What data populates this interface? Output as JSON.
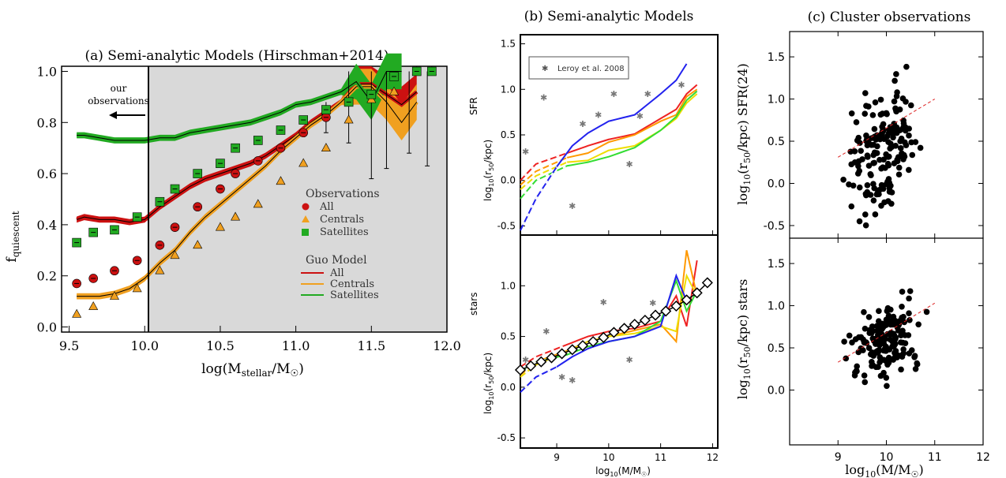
{
  "panel_a": {
    "title": "(a) Semi-analytic Models (Hirschman+2014)",
    "xlabel_main": "log(M",
    "xlabel_sub": "stellar",
    "xlabel_end": "/M",
    "ylabel_main": "f",
    "ylabel_sub": "quiescent",
    "annotation_line1": "our",
    "annotation_line2": "observations",
    "obs_legend_title": "Observations",
    "obs_all": "All",
    "obs_centrals": "Centrals",
    "obs_satellites": "Satellites",
    "model_legend_title": "Guo Model",
    "model_all": "All",
    "model_centrals": "Centrals",
    "model_satellites": "Satellites"
  },
  "panel_b": {
    "title": "(b) Semi-analytic Models",
    "legend_label": "Leroy et al. 2008",
    "top_ylabel_main": "log",
    "top_ylabel_sub": "10",
    "top_ylabel_rest": "(r",
    "top_ylabel_sub2": "50",
    "top_ylabel_end": "/kpc)",
    "top_tag": "SFR",
    "bottom_tag": "stars",
    "xlabel_main": "log",
    "xlabel_sub": "10",
    "xlabel_end": "(M/M"
  },
  "panel_c": {
    "title": "(c) Cluster observations",
    "top_ylabel": "log10(r50/kpc) SFR(24)",
    "bottom_ylabel": "log10(r50/kpc) stars",
    "xlabel_main": "log",
    "xlabel_sub": "10",
    "xlabel_end": "(M/M"
  },
  "colors": {
    "all": "#cc1111",
    "centrals": "#f0a020",
    "satellites": "#22aa22",
    "shade": "#d9d9d9",
    "blue": "#2222ee",
    "fit": "#dd2222"
  },
  "chart_data": [
    {
      "type": "line",
      "panel": "a",
      "title": "(a) Semi-analytic Models (Hirschman+2014)",
      "xlabel": "log(Mstellar/M☉)",
      "ylabel": "fquiescent",
      "xlim": [
        9.45,
        12.0
      ],
      "ylim": [
        -0.02,
        1.02
      ],
      "xticks": [
        "9.5",
        "10.0",
        "10.5",
        "11.0",
        "11.5",
        "12.0"
      ],
      "yticks": [
        "0.0",
        "0.2",
        "0.4",
        "0.6",
        "0.8",
        "1.0"
      ],
      "shaded_region_x": [
        10.0,
        12.0
      ],
      "vertical_line_x": 10.0,
      "model_series": [
        {
          "name": "All",
          "x": [
            9.55,
            9.6,
            9.7,
            9.8,
            9.9,
            10.0,
            10.1,
            10.2,
            10.3,
            10.4,
            10.5,
            10.6,
            10.7,
            10.8,
            10.9,
            11.0,
            11.1,
            11.2,
            11.3,
            11.4,
            11.5,
            11.6,
            11.7,
            11.8
          ],
          "y": [
            0.42,
            0.43,
            0.42,
            0.42,
            0.41,
            0.42,
            0.47,
            0.51,
            0.55,
            0.58,
            0.6,
            0.62,
            0.64,
            0.67,
            0.71,
            0.75,
            0.8,
            0.84,
            0.88,
            0.95,
            0.95,
            0.91,
            0.87,
            0.92
          ]
        },
        {
          "name": "Centrals",
          "x": [
            9.55,
            9.6,
            9.7,
            9.8,
            9.9,
            10.0,
            10.1,
            10.2,
            10.3,
            10.4,
            10.5,
            10.6,
            10.7,
            10.8,
            10.9,
            11.0,
            11.1,
            11.2,
            11.3,
            11.4,
            11.5,
            11.6,
            11.7,
            11.8
          ],
          "y": [
            0.12,
            0.12,
            0.12,
            0.13,
            0.15,
            0.19,
            0.25,
            0.3,
            0.37,
            0.43,
            0.48,
            0.53,
            0.58,
            0.63,
            0.69,
            0.74,
            0.79,
            0.83,
            0.88,
            0.94,
            0.94,
            0.88,
            0.8,
            0.88
          ]
        },
        {
          "name": "Satellites",
          "x": [
            9.55,
            9.6,
            9.7,
            9.8,
            9.9,
            10.0,
            10.1,
            10.2,
            10.3,
            10.4,
            10.5,
            10.6,
            10.7,
            10.8,
            10.9,
            11.0,
            11.1,
            11.2,
            11.3,
            11.4,
            11.5,
            11.6,
            11.7
          ],
          "y": [
            0.75,
            0.75,
            0.74,
            0.73,
            0.73,
            0.73,
            0.74,
            0.74,
            0.76,
            0.77,
            0.78,
            0.79,
            0.8,
            0.82,
            0.84,
            0.87,
            0.88,
            0.9,
            0.92,
            0.96,
            0.88,
            1.0,
            1.0
          ]
        }
      ],
      "observations": [
        {
          "name": "All",
          "x": [
            9.55,
            9.66,
            9.8,
            9.95,
            10.1,
            10.2,
            10.35,
            10.5,
            10.6,
            10.75,
            10.9,
            11.05,
            11.2
          ],
          "y": [
            0.17,
            0.19,
            0.22,
            0.26,
            0.32,
            0.39,
            0.47,
            0.54,
            0.6,
            0.65,
            0.7,
            0.76,
            0.82
          ]
        },
        {
          "name": "Centrals",
          "x": [
            9.55,
            9.66,
            9.8,
            9.95,
            10.1,
            10.2,
            10.35,
            10.5,
            10.6,
            10.75,
            10.9,
            11.05,
            11.2,
            11.35,
            11.5,
            11.65,
            11.8,
            11.9
          ],
          "y": [
            0.05,
            0.08,
            0.12,
            0.15,
            0.22,
            0.28,
            0.32,
            0.39,
            0.43,
            0.48,
            0.57,
            0.64,
            0.7,
            0.81,
            0.89,
            0.92,
            1.0,
            1.0
          ]
        },
        {
          "name": "Satellites",
          "x": [
            9.55,
            9.66,
            9.8,
            9.95,
            10.1,
            10.2,
            10.35,
            10.5,
            10.6,
            10.75,
            10.9,
            11.05,
            11.2,
            11.35,
            11.5,
            11.65,
            11.8,
            11.9
          ],
          "y": [
            0.33,
            0.37,
            0.38,
            0.43,
            0.49,
            0.54,
            0.6,
            0.64,
            0.7,
            0.73,
            0.77,
            0.81,
            0.85,
            0.88,
            0.91,
            0.98,
            1.0,
            1.0
          ]
        }
      ]
    },
    {
      "type": "line",
      "panel": "b-top",
      "ylabel": "log10(r50/kpc) SFR",
      "xlim": [
        8.3,
        12.1
      ],
      "ylim": [
        -0.6,
        1.6
      ],
      "xticks": [
        "9",
        "10",
        "11",
        "12"
      ],
      "yticks": [
        "-0.5",
        "0.0",
        "0.5",
        "1.0",
        "1.5"
      ],
      "legend": "Leroy et al. 2008",
      "leroy_points": {
        "x": [
          8.4,
          8.75,
          9.3,
          9.5,
          9.8,
          10.1,
          10.4,
          10.6,
          10.75,
          11.4
        ],
        "y": [
          0.32,
          0.91,
          -0.28,
          0.62,
          0.72,
          0.95,
          0.18,
          0.71,
          0.95,
          1.05
        ]
      },
      "series": [
        {
          "name": "red",
          "x": [
            8.3,
            8.6,
            9.2,
            9.6,
            10.0,
            10.5,
            11.0,
            11.3,
            11.5,
            11.7
          ],
          "y": [
            0.0,
            0.18,
            0.3,
            0.38,
            0.45,
            0.51,
            0.68,
            0.78,
            0.95,
            1.05
          ]
        },
        {
          "name": "orange",
          "x": [
            8.3,
            8.6,
            9.2,
            9.6,
            10.0,
            10.5,
            11.0,
            11.3,
            11.5,
            11.7
          ],
          "y": [
            -0.05,
            0.1,
            0.25,
            0.3,
            0.42,
            0.5,
            0.65,
            0.72,
            0.92,
            1.0
          ]
        },
        {
          "name": "yellow",
          "x": [
            8.3,
            8.6,
            9.2,
            9.6,
            10.0,
            10.5,
            11.0,
            11.3,
            11.5,
            11.7
          ],
          "y": [
            -0.1,
            0.05,
            0.2,
            0.22,
            0.33,
            0.38,
            0.55,
            0.68,
            0.85,
            0.95
          ]
        },
        {
          "name": "green",
          "x": [
            8.3,
            8.6,
            9.2,
            9.6,
            10.0,
            10.5,
            11.0,
            11.3,
            11.5,
            11.7
          ],
          "y": [
            -0.2,
            0.0,
            0.16,
            0.2,
            0.26,
            0.36,
            0.55,
            0.7,
            0.88,
            0.98
          ]
        },
        {
          "name": "blue",
          "x": [
            8.3,
            8.6,
            9.0,
            9.3,
            9.6,
            10.0,
            10.5,
            11.0,
            11.3,
            11.5
          ],
          "y": [
            -0.55,
            -0.2,
            0.15,
            0.38,
            0.52,
            0.65,
            0.72,
            0.95,
            1.1,
            1.28
          ]
        }
      ]
    },
    {
      "type": "line",
      "panel": "b-bottom",
      "ylabel": "log10(r50/kpc) stars",
      "xlabel": "log10(M/M☉)",
      "xlim": [
        8.3,
        12.1
      ],
      "ylim": [
        -0.6,
        1.5
      ],
      "xticks": [
        "9",
        "10",
        "11",
        "12"
      ],
      "yticks": [
        "-0.5",
        "0.0",
        "0.5",
        "1.0"
      ],
      "leroy_points": {
        "x": [
          8.4,
          8.8,
          9.1,
          9.3,
          9.9,
          10.4,
          10.85
        ],
        "y": [
          0.27,
          0.55,
          0.1,
          0.07,
          0.84,
          0.27,
          0.83
        ]
      },
      "series": [
        {
          "name": "red",
          "x": [
            8.3,
            8.6,
            9.2,
            9.6,
            10.0,
            10.5,
            11.0,
            11.3,
            11.5,
            11.7
          ],
          "y": [
            0.2,
            0.3,
            0.42,
            0.5,
            0.55,
            0.58,
            0.65,
            0.9,
            0.6,
            1.25
          ]
        },
        {
          "name": "orange",
          "x": [
            8.3,
            8.6,
            9.2,
            9.6,
            10.0,
            10.5,
            11.0,
            11.3,
            11.5,
            11.7
          ],
          "y": [
            0.12,
            0.25,
            0.36,
            0.45,
            0.5,
            0.56,
            0.62,
            0.45,
            1.35,
            0.9
          ]
        },
        {
          "name": "yellow",
          "x": [
            8.3,
            8.6,
            9.2,
            9.6,
            10.0,
            10.5,
            11.0,
            11.3,
            11.5,
            11.7
          ],
          "y": [
            0.1,
            0.22,
            0.35,
            0.45,
            0.5,
            0.53,
            0.6,
            0.55,
            1.1,
            0.9
          ]
        },
        {
          "name": "green",
          "x": [
            8.3,
            8.6,
            9.2,
            9.6,
            10.0,
            10.5,
            11.0,
            11.3,
            11.5,
            11.7
          ],
          "y": [
            0.15,
            0.25,
            0.32,
            0.4,
            0.45,
            0.5,
            0.65,
            1.05,
            0.75,
            0.95
          ]
        },
        {
          "name": "blue",
          "x": [
            8.3,
            8.6,
            9.0,
            9.3,
            9.6,
            10.0,
            10.5,
            11.0,
            11.3,
            11.5
          ],
          "y": [
            -0.05,
            0.1,
            0.2,
            0.3,
            0.38,
            0.45,
            0.5,
            0.6,
            1.1,
            0.85
          ]
        },
        {
          "name": "black diamonds",
          "x": [
            8.3,
            8.5,
            8.7,
            8.9,
            9.1,
            9.3,
            9.5,
            9.7,
            9.9,
            10.1,
            10.3,
            10.5,
            10.7,
            10.9,
            11.1,
            11.3,
            11.5,
            11.7,
            11.9
          ],
          "y": [
            0.17,
            0.21,
            0.25,
            0.29,
            0.33,
            0.37,
            0.41,
            0.45,
            0.49,
            0.54,
            0.58,
            0.62,
            0.66,
            0.71,
            0.75,
            0.8,
            0.86,
            0.93,
            1.03
          ]
        }
      ]
    },
    {
      "type": "scatter",
      "panel": "c-top",
      "ylabel": "log10(r50/kpc) SFR(24)",
      "xlim": [
        8.0,
        12.0
      ],
      "ylim": [
        -0.65,
        1.8
      ],
      "xticks": [
        "9",
        "10",
        "11",
        "12"
      ],
      "yticks": [
        "-0.5",
        "0.0",
        "0.5",
        "1.0",
        "1.5"
      ],
      "fit_line": {
        "x": [
          9.0,
          11.0
        ],
        "y": [
          0.31,
          1.0
        ]
      }
    },
    {
      "type": "scatter",
      "panel": "c-bottom",
      "ylabel": "log10(r50/kpc) stars",
      "xlabel": "log10(M/M☉)",
      "xlim": [
        8.0,
        12.0
      ],
      "ylim": [
        -0.65,
        1.8
      ],
      "xticks": [
        "9",
        "10",
        "11",
        "12"
      ],
      "yticks": [
        "0.0",
        "0.5",
        "1.0",
        "1.5"
      ],
      "fit_line": {
        "x": [
          9.0,
          11.0
        ],
        "y": [
          0.33,
          1.03
        ]
      }
    }
  ]
}
